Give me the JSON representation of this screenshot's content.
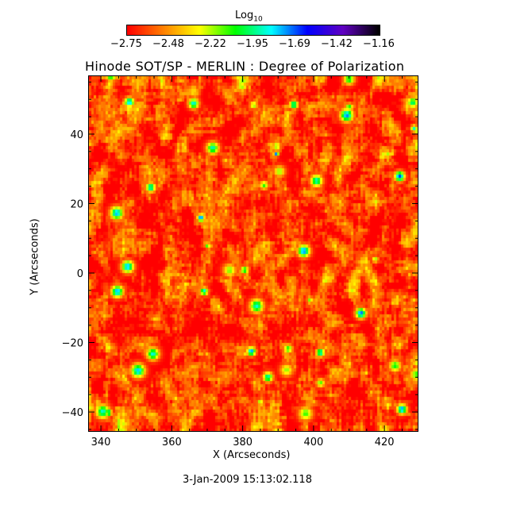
{
  "chart_data": {
    "type": "heatmap",
    "title": "Hinode SOT/SP - MERLIN : Degree of Polarization",
    "xlabel": "X (Arcseconds)",
    "ylabel": "Y (Arcseconds)",
    "xlim": [
      336.4,
      429.6
    ],
    "ylim": [
      -45.7,
      56.9
    ],
    "x_ticks": [
      340,
      360,
      380,
      400,
      420
    ],
    "y_ticks": [
      -40,
      -20,
      0,
      20,
      40
    ],
    "colorbar": {
      "title": "Log",
      "title_subscript": "10",
      "range": [
        -2.75,
        -1.16
      ],
      "ticks": [
        "-2.75",
        "-2.48",
        "-2.22",
        "-1.95",
        "-1.69",
        "-1.42",
        "-1.16"
      ],
      "colormap": [
        "#ff0000",
        "#ff8000",
        "#ffff00",
        "#00ff00",
        "#00ffff",
        "#0000ff",
        "#6000c0",
        "#000000"
      ]
    },
    "footer": "3-Jan-2009 15:13:02.118"
  }
}
